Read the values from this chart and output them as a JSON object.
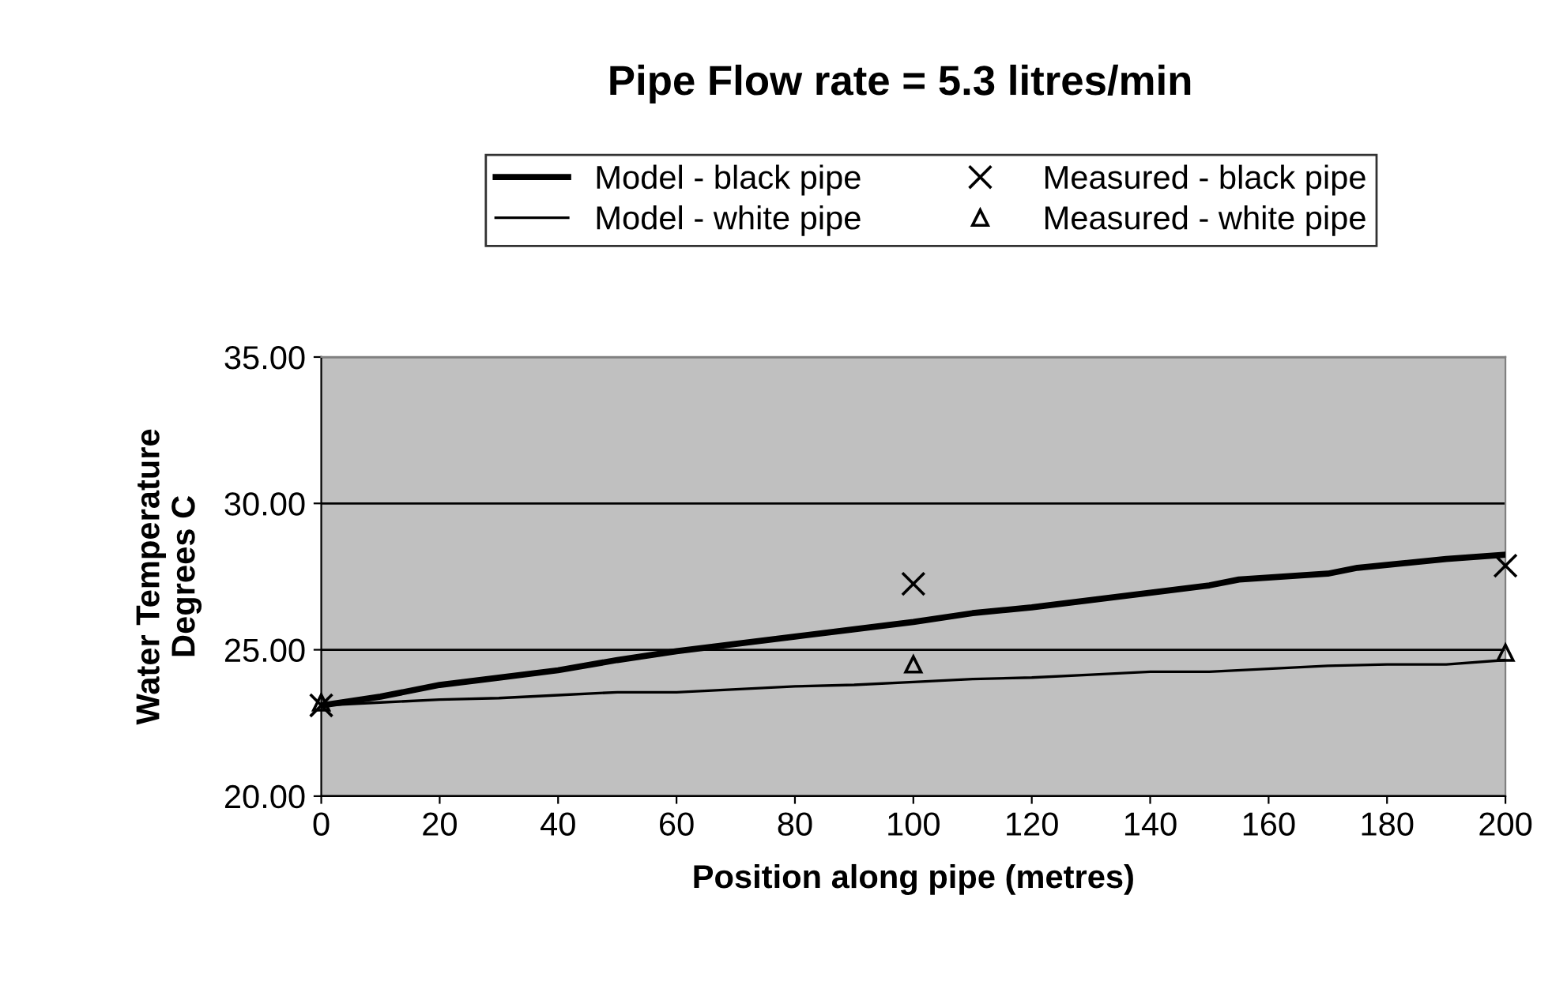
{
  "chart_data": {
    "type": "line",
    "title": "Pipe Flow rate = 5.3 litres/min",
    "xlabel": "Position along pipe (metres)",
    "ylabel": "Water Temperature\nDegrees C",
    "xlim": [
      0,
      200
    ],
    "xticks": [
      0,
      20,
      40,
      60,
      80,
      100,
      120,
      140,
      160,
      180,
      200
    ],
    "ylim": [
      20,
      35
    ],
    "yticks": [
      {
        "value": 20,
        "label": "20.00"
      },
      {
        "value": 25,
        "label": "25.00"
      },
      {
        "value": 30,
        "label": "30.00"
      },
      {
        "value": 35,
        "label": "35.00"
      }
    ],
    "grid": "y",
    "legend": "top",
    "series": [
      {
        "name": "Model - black pipe",
        "color": "#000000",
        "marker": "none",
        "x": [
          0,
          10,
          20,
          30,
          40,
          50,
          60,
          70,
          80,
          90,
          100,
          110,
          120,
          130,
          140,
          150,
          155,
          170,
          175,
          180,
          190,
          200
        ],
        "values": [
          23.1,
          23.4,
          23.8,
          24.05,
          24.3,
          24.65,
          24.95,
          25.2,
          25.45,
          25.7,
          25.95,
          26.25,
          26.45,
          26.7,
          26.95,
          27.2,
          27.4,
          27.6,
          27.8,
          27.9,
          28.1,
          28.25
        ]
      },
      {
        "name": "Model - white pipe",
        "color": "#000000",
        "marker": "none",
        "x": [
          0,
          10,
          20,
          30,
          40,
          50,
          60,
          70,
          80,
          90,
          100,
          110,
          120,
          130,
          140,
          150,
          160,
          170,
          180,
          190,
          200
        ],
        "values": [
          23.1,
          23.2,
          23.3,
          23.35,
          23.45,
          23.55,
          23.55,
          23.65,
          23.75,
          23.8,
          23.9,
          24.0,
          24.05,
          24.15,
          24.25,
          24.25,
          24.35,
          24.45,
          24.5,
          24.5,
          24.65
        ]
      },
      {
        "name": "Measured - black pipe",
        "color": "#000000",
        "type": "scatter",
        "marker": "cross",
        "x": [
          0,
          100,
          200
        ],
        "values": [
          23.1,
          27.25,
          27.87
        ]
      },
      {
        "name": "Measured - white pipe",
        "color": "#000000",
        "type": "scatter",
        "marker": "triangle",
        "x": [
          0,
          100,
          200
        ],
        "values": [
          23.2,
          24.5,
          24.9
        ]
      }
    ]
  }
}
